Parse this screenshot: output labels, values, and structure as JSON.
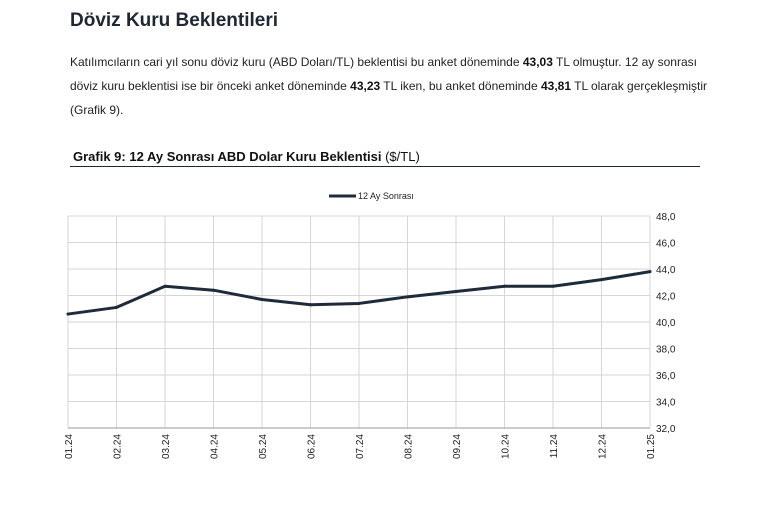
{
  "heading": "Döviz Kuru Beklentileri",
  "paragraph": {
    "t1": "Katılımcıların cari yıl sonu döviz kuru (ABD Doları/TL) beklentisi bu anket döneminde ",
    "v1": "43,03",
    "t2": " TL olmuştur. 12 ay sonrası döviz kuru beklentisi ise bir önceki anket döneminde ",
    "v2": "43,23",
    "t3": " TL iken, bu anket döneminde ",
    "v3": "43,81",
    "t4": " TL olarak gerçekleşmiştir (Grafik 9)."
  },
  "chart_title": {
    "main": "Grafik 9: 12 Ay Sonrası ABD Dolar Kuru Beklentisi",
    "unit": " ($/TL)"
  },
  "chart_data": {
    "type": "line",
    "categories": [
      "01.24",
      "02.24",
      "03.24",
      "04.24",
      "05.24",
      "06.24",
      "07.24",
      "08.24",
      "09.24",
      "10.24",
      "11.24",
      "12.24",
      "01.25"
    ],
    "series": [
      {
        "name": "12 Ay Sonrası",
        "color": "#1f2b3a",
        "values": [
          40.6,
          41.1,
          42.7,
          42.4,
          41.7,
          41.3,
          41.4,
          41.9,
          42.3,
          42.7,
          42.7,
          43.2,
          43.8
        ]
      }
    ],
    "ylim": [
      32.0,
      48.0
    ],
    "yticks": [
      "32,0",
      "34,0",
      "36,0",
      "38,0",
      "40,0",
      "42,0",
      "44,0",
      "46,0",
      "48,0"
    ],
    "grid": true,
    "legend": "top-center"
  }
}
